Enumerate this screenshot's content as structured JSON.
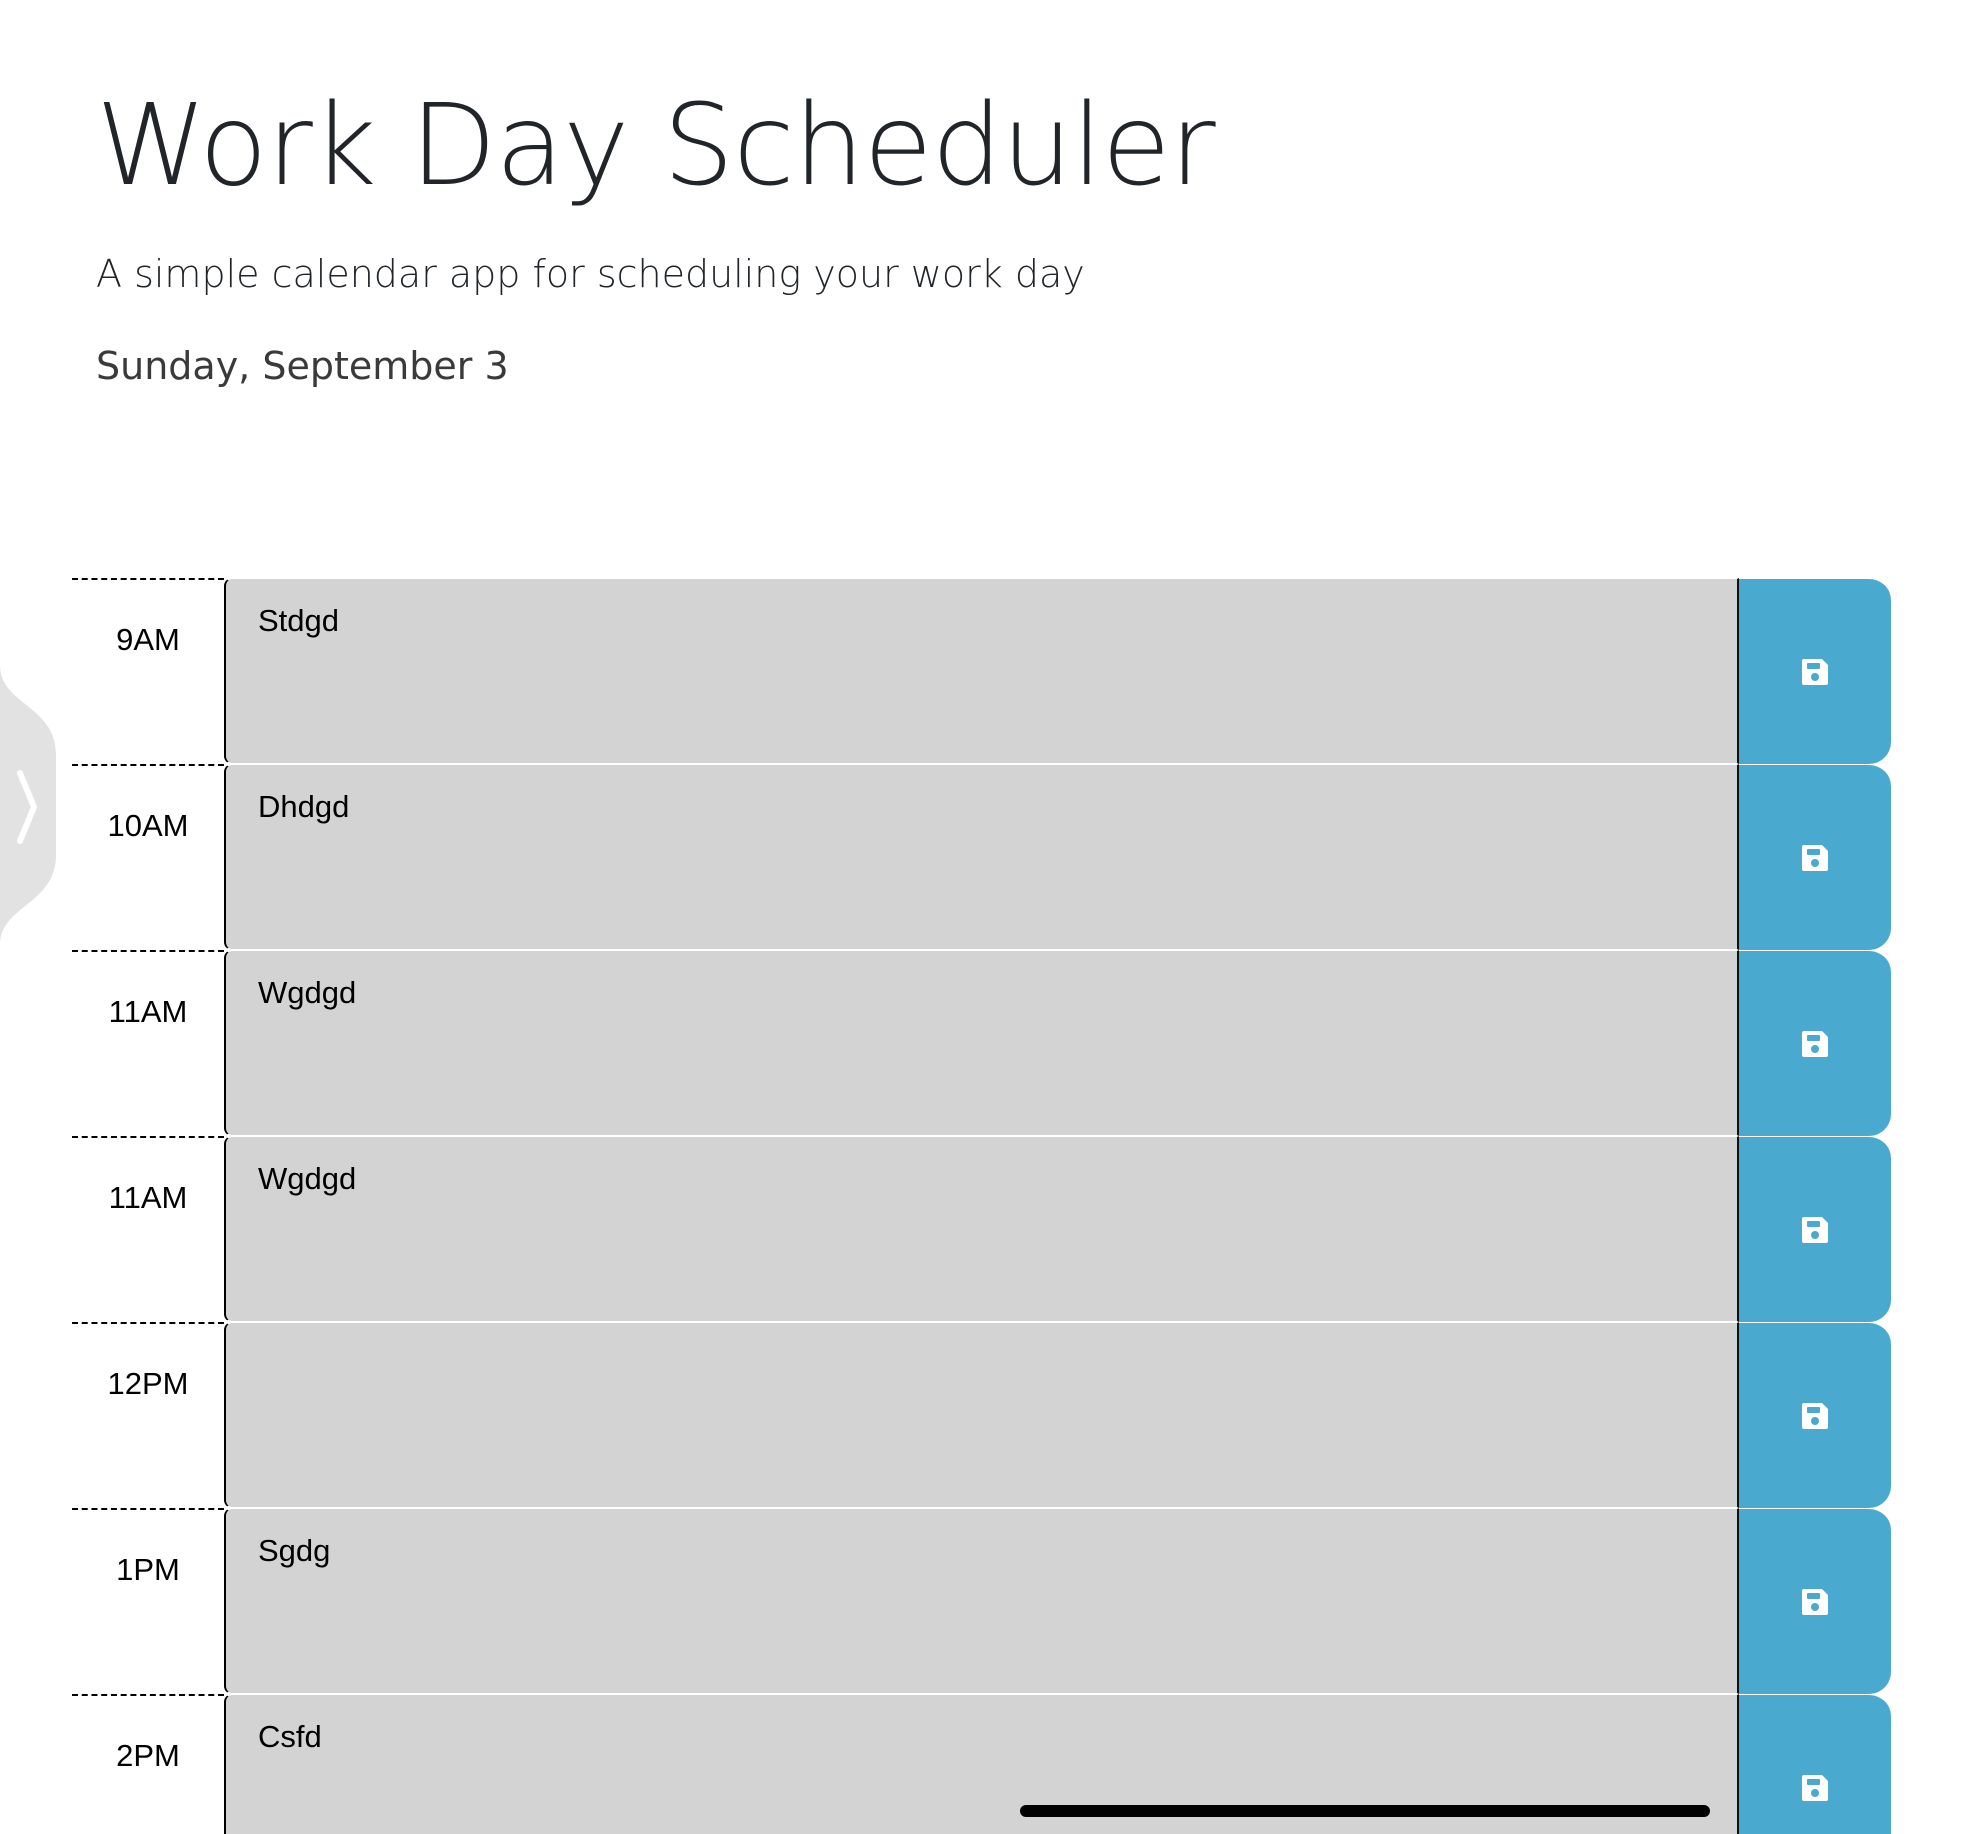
{
  "header": {
    "title": "Work Day Scheduler",
    "subtitle": "A simple calendar app for scheduling your work day",
    "current_day": "Sunday, September 3"
  },
  "schedule": {
    "rows": [
      {
        "hour": "9AM",
        "text": "Stdgd"
      },
      {
        "hour": "10AM",
        "text": "Dhdgd"
      },
      {
        "hour": "11AM",
        "text": "Wgdgd"
      },
      {
        "hour": "11AM",
        "text": "Wgdgd"
      },
      {
        "hour": "12PM",
        "text": ""
      },
      {
        "hour": "1PM",
        "text": "Sgdg"
      },
      {
        "hour": "2PM",
        "text": "Csfd"
      }
    ],
    "save_icon": "save-icon"
  },
  "colors": {
    "block_past": "#d3d3d3",
    "save_button": "#4aa9cf"
  }
}
